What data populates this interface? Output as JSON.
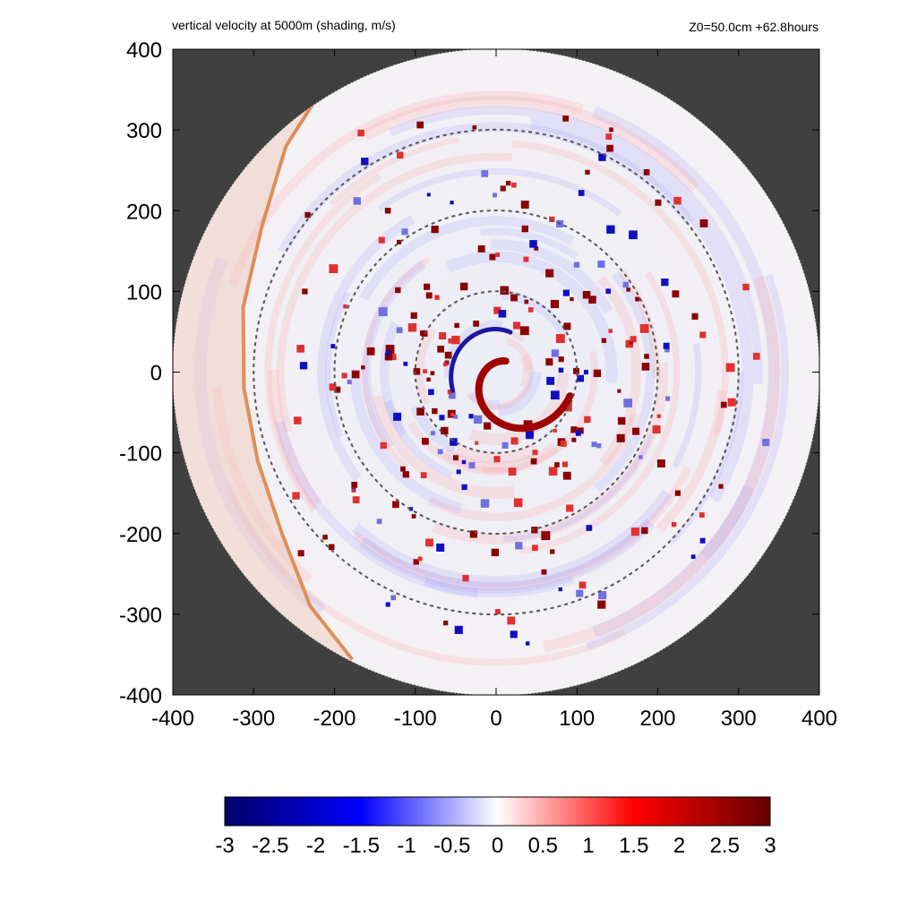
{
  "chart_data": {
    "type": "heatmap",
    "title": "vertical velocity at 5000m (shading, m/s)",
    "subtitle": "Z0=50.0cm  +62.8hours",
    "xlim": [
      -400,
      400
    ],
    "ylim": [
      -400,
      400
    ],
    "xticks": [
      "-400",
      "-300",
      "-200",
      "-100",
      "0",
      "100",
      "200",
      "300",
      "400"
    ],
    "yticks": [
      "400",
      "300",
      "200",
      "100",
      "0",
      "-100",
      "-200",
      "-300",
      "-400"
    ],
    "domain_radius": 400,
    "range_rings": [
      100,
      200,
      300
    ],
    "colorbar": {
      "min": -3,
      "max": 3,
      "ticks": [
        "-3",
        "-2.5",
        "-2",
        "-1.5",
        "-1",
        "-0.5",
        "0",
        "0.5",
        "1",
        "1.5",
        "2",
        "2.5",
        "3"
      ],
      "colors": [
        "#000066",
        "#0000ff",
        "#ffffff",
        "#ff0000",
        "#660000"
      ]
    },
    "background_color": "#404040"
  }
}
